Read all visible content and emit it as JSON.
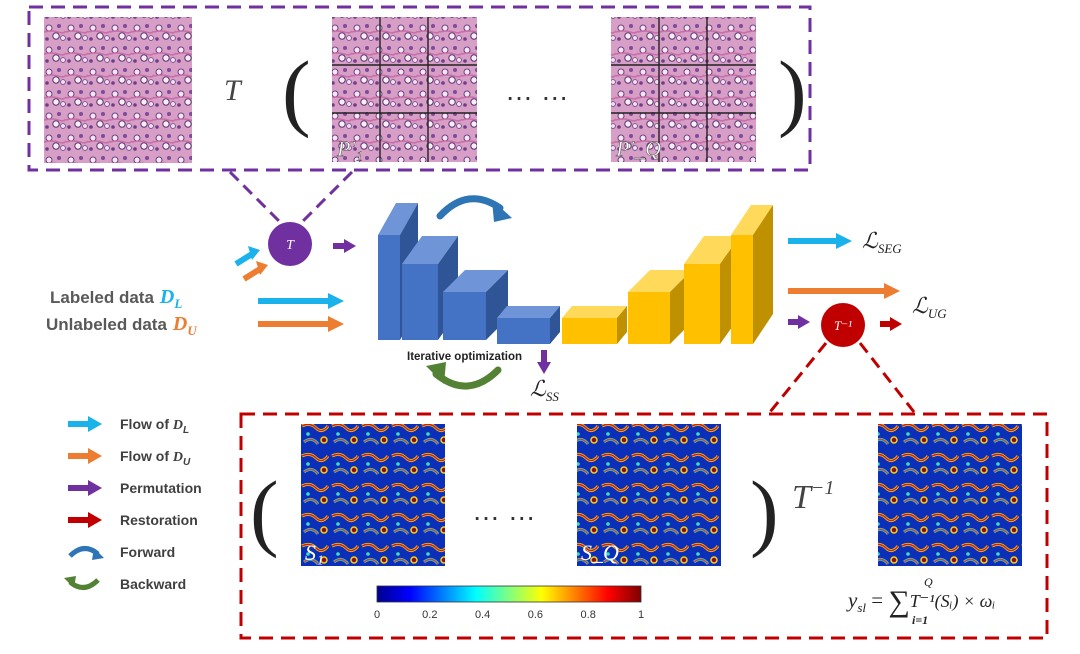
{
  "colors": {
    "labeled": "#1ab2ea",
    "unlabeled": "#ed7d31",
    "permutation": "#7030a0",
    "restoration": "#c00000",
    "forward": "#2e75b6",
    "backward": "#548235",
    "encoder": "#4472c4",
    "decoder": "#ffc000",
    "purple_box": "#7030a0",
    "red_box": "#c00000"
  },
  "top_panel": {
    "t_symbol": "T",
    "left_paren": "(",
    "right_paren": ")",
    "ellipsis": "… …",
    "patch_first_label": "P'₁",
    "patch_last_label": "P'_Q"
  },
  "t_circle_label": "T",
  "tinv_circle_label": "T⁻¹",
  "inputs": {
    "labeled_text": "Labeled data",
    "labeled_symbol": "D",
    "labeled_sub": "L",
    "unlabeled_text": "Unlabeled data",
    "unlabeled_symbol": "D",
    "unlabeled_sub": "U"
  },
  "network": {
    "iter_label": "Iterative optimization"
  },
  "losses": {
    "seg": "ℒ",
    "seg_sub": "SEG",
    "ug": "ℒ",
    "ug_sub": "UG",
    "ss": "ℒ",
    "ss_sub": "SS"
  },
  "legend": [
    {
      "label": "Flow of ",
      "sym": "D",
      "sub": "L",
      "kind": "arrow",
      "color": "#1ab2ea"
    },
    {
      "label": "Flow of ",
      "sym": "D",
      "sub": "U",
      "kind": "arrow",
      "color": "#ed7d31"
    },
    {
      "label": "Permutation",
      "sym": "",
      "sub": "",
      "kind": "arrow",
      "color": "#7030a0"
    },
    {
      "label": "Restoration",
      "sym": "",
      "sub": "",
      "kind": "arrow",
      "color": "#c00000"
    },
    {
      "label": "Forward",
      "sym": "",
      "sub": "",
      "kind": "curve-down",
      "color": "#2e75b6"
    },
    {
      "label": "Backward",
      "sym": "",
      "sub": "",
      "kind": "curve-up",
      "color": "#548235"
    }
  ],
  "bottom_panel": {
    "left_paren": "(",
    "right_paren": ")",
    "ellipsis": "… …",
    "map_first_label": "S₁",
    "map_last_label": "S_Q",
    "tinv": "T",
    "tinv_sup": "−1",
    "colorbar_ticks": [
      "0",
      "0.2",
      "0.4",
      "0.6",
      "0.8",
      "1"
    ],
    "formula_lhs": "y",
    "formula_lhs_sub": "sl",
    "formula_eq": " = ",
    "formula_sum": "∑",
    "formula_sum_top": "Q",
    "formula_sum_bot": "i=1",
    "formula_rhs": "T⁻¹(Sᵢ) × ωᵢ"
  }
}
